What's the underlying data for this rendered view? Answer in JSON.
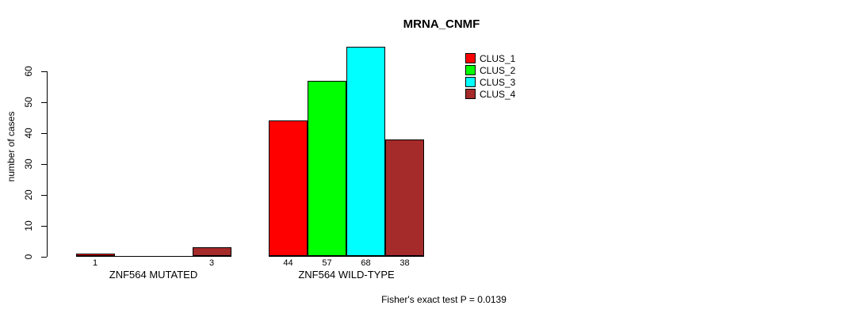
{
  "chart_data": {
    "type": "bar",
    "title": "MRNA_CNMF",
    "ylabel": "number of cases",
    "xlabel": "",
    "ylim": [
      0,
      68
    ],
    "yticks": [
      0,
      10,
      20,
      30,
      40,
      50,
      60
    ],
    "grid": false,
    "legend_position": "top-right",
    "categories": [
      "ZNF564 MUTATED",
      "ZNF564 WILD-TYPE"
    ],
    "series": [
      {
        "name": "CLUS_1",
        "color": "#ff0000",
        "values": [
          1,
          44
        ]
      },
      {
        "name": "CLUS_2",
        "color": "#00ff00",
        "values": [
          0,
          57
        ]
      },
      {
        "name": "CLUS_3",
        "color": "#00ffff",
        "values": [
          0,
          68
        ]
      },
      {
        "name": "CLUS_4",
        "color": "#a52a2a",
        "values": [
          3,
          38
        ]
      }
    ],
    "bar_value_labels": [
      [
        "1",
        "",
        "",
        "3"
      ],
      [
        "44",
        "57",
        "68",
        "38"
      ]
    ],
    "annotation": "Fisher's exact test P = 0.0139"
  }
}
